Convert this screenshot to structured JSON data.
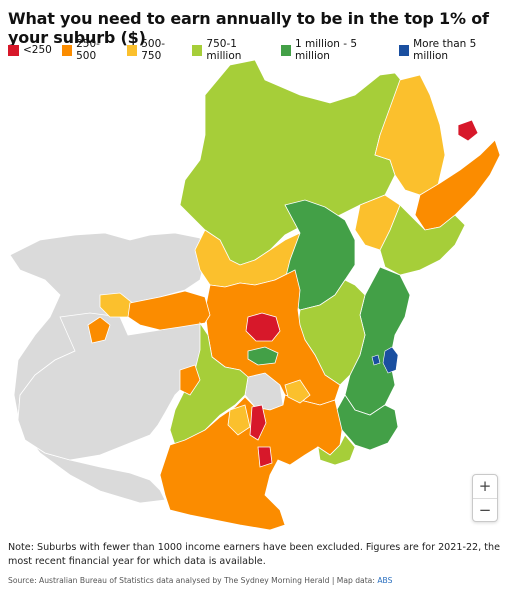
{
  "title": "What you need to earn annually to be in the top 1% of your suburb ($)",
  "legend": [
    {
      "label": "<250",
      "color": "#d7182a"
    },
    {
      "label": "250-500",
      "color": "#fb8c00"
    },
    {
      "label": "500-750",
      "color": "#fbc02d"
    },
    {
      "label": "750-1 million",
      "color": "#a6ce39"
    },
    {
      "label": "1 million - 5 million",
      "color": "#43a047"
    },
    {
      "label": "More than 5 million",
      "color": "#1a4fa0"
    }
  ],
  "colors": {
    "excluded": "#dadada",
    "border": "#ffffff"
  },
  "zoom": {
    "in_label": "+",
    "out_label": "−"
  },
  "note": "Note: Suburbs with fewer than 1000 income earners have been excluded. Figures are for 2021-22, the most recent financial year for which data is available.",
  "source": {
    "text": "Source: Australian Bureau of Statistics data analysed by The Sydney Morning Herald | Map data: ",
    "link": "ABS"
  }
}
